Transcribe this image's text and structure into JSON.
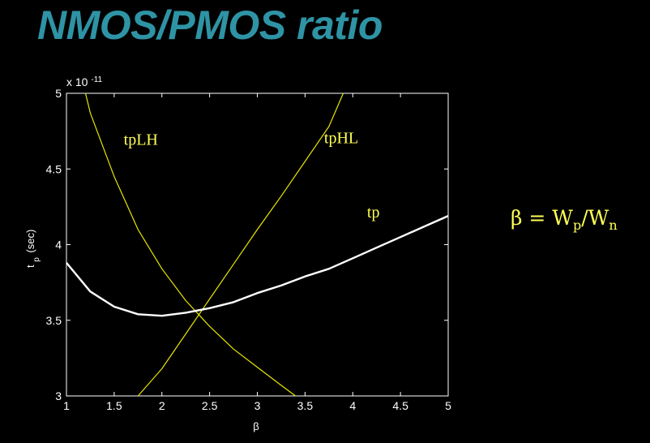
{
  "slide": {
    "title": "NMOS/PMOS ratio",
    "formula": {
      "beta": "β",
      "eq": " = W",
      "p": "p",
      "slash": "/W",
      "n": "n"
    }
  },
  "colors": {
    "title": "#2e94a5",
    "accent": "#ffff55",
    "tp_line": "#ffffff",
    "tpLH_line": "#e6e600",
    "tpHL_line": "#e6e600"
  },
  "chart_data": {
    "type": "line",
    "xlabel": "β",
    "ylabel_main": "t",
    "ylabel_sub": "p",
    "ylabel_unit": "(sec)",
    "y_multiplier": "x 10",
    "y_exponent": "-11",
    "xlim": [
      1,
      5
    ],
    "ylim": [
      3,
      5
    ],
    "xticks": [
      "1",
      "1.5",
      "2",
      "2.5",
      "3",
      "3.5",
      "4",
      "4.5",
      "5"
    ],
    "yticks": [
      "3",
      "3.5",
      "4",
      "4.5",
      "5"
    ],
    "series": [
      {
        "name": "tpLH",
        "x": [
          1.2,
          1.25,
          1.5,
          1.75,
          2.0,
          2.25,
          2.5,
          2.75,
          3.0,
          3.25,
          3.4
        ],
        "y": [
          5.0,
          4.87,
          4.45,
          4.1,
          3.84,
          3.63,
          3.46,
          3.31,
          3.19,
          3.07,
          3.0
        ]
      },
      {
        "name": "tpHL",
        "x": [
          1.75,
          2.0,
          2.25,
          2.5,
          2.75,
          3.0,
          3.25,
          3.5,
          3.75,
          3.9
        ],
        "y": [
          3.0,
          3.18,
          3.41,
          3.64,
          3.87,
          4.1,
          4.32,
          4.55,
          4.78,
          5.0
        ]
      },
      {
        "name": "tp",
        "x": [
          1.0,
          1.25,
          1.5,
          1.75,
          2.0,
          2.25,
          2.5,
          2.75,
          3.0,
          3.25,
          3.5,
          3.75,
          4.0,
          4.25,
          4.5,
          4.75,
          5.0
        ],
        "y": [
          3.88,
          3.69,
          3.59,
          3.54,
          3.53,
          3.55,
          3.58,
          3.62,
          3.68,
          3.73,
          3.79,
          3.84,
          3.91,
          3.98,
          4.05,
          4.12,
          4.19
        ]
      }
    ],
    "annotations": [
      {
        "text": "tpLH",
        "x": 1.6,
        "y": 4.66
      },
      {
        "text": "tpHL",
        "x": 3.7,
        "y": 4.67
      },
      {
        "text": "tp",
        "x": 4.15,
        "y": 4.18
      }
    ]
  }
}
